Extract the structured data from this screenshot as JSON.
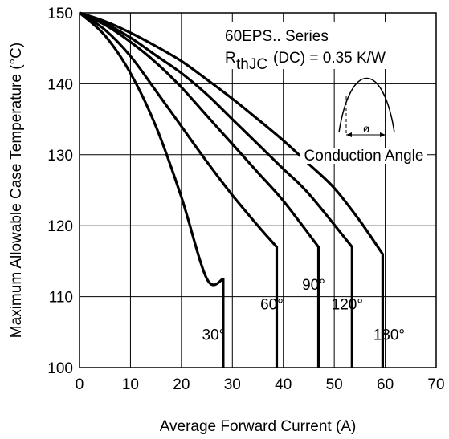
{
  "chart_data": {
    "type": "line",
    "xlabel": "Average Forward Current (A)",
    "ylabel": "Maximum Allowable Case Temperature (°C)",
    "xlim": [
      0,
      70
    ],
    "ylim": [
      100,
      150
    ],
    "xticks": [
      "0",
      "10",
      "20",
      "30",
      "40",
      "50",
      "60",
      "70"
    ],
    "yticks": [
      "100",
      "110",
      "120",
      "130",
      "140",
      "150"
    ],
    "grid": true,
    "annotation": {
      "series_name": "60EPS.. Series",
      "rth_symbol": "R",
      "rth_subscript": "thJC",
      "rth_value": " (DC) = 0.35 K/W",
      "phi": "ø",
      "conduction_label": "Conduction Angle"
    },
    "series": [
      {
        "label": "30°",
        "x": [
          0,
          5,
          10,
          15,
          20,
          25,
          28.2,
          28.2
        ],
        "y": [
          150,
          146.8,
          141.5,
          134,
          124,
          112.5,
          112.5,
          100
        ]
      },
      {
        "label": "60°",
        "x": [
          0,
          5,
          10,
          15,
          20,
          25,
          30,
          35,
          38.7,
          38.7
        ],
        "y": [
          150,
          147.6,
          143.9,
          139,
          134,
          129,
          124.3,
          120,
          117,
          100
        ]
      },
      {
        "label": "90°",
        "x": [
          0,
          5,
          10,
          15,
          20,
          25,
          30,
          35,
          40,
          46.9,
          46.9
        ],
        "y": [
          150,
          148.3,
          145.9,
          143,
          139.5,
          135.5,
          131.5,
          127.5,
          123.5,
          117,
          100
        ]
      },
      {
        "label": "120°",
        "x": [
          0,
          5,
          10,
          15,
          20,
          25,
          30,
          35,
          40,
          45,
          53.5,
          53.5
        ],
        "y": [
          150,
          148.5,
          146.5,
          144,
          141.5,
          138.5,
          135,
          131.5,
          128,
          124.5,
          117,
          100
        ]
      },
      {
        "label": "180°",
        "x": [
          0,
          5,
          10,
          15,
          20,
          25,
          30,
          35,
          40,
          45,
          50,
          55,
          59.5,
          59.5
        ],
        "y": [
          150,
          148.8,
          147.2,
          145.3,
          143.2,
          140.6,
          137.9,
          135,
          132,
          128.7,
          125.3,
          120.7,
          116,
          100
        ]
      }
    ]
  }
}
